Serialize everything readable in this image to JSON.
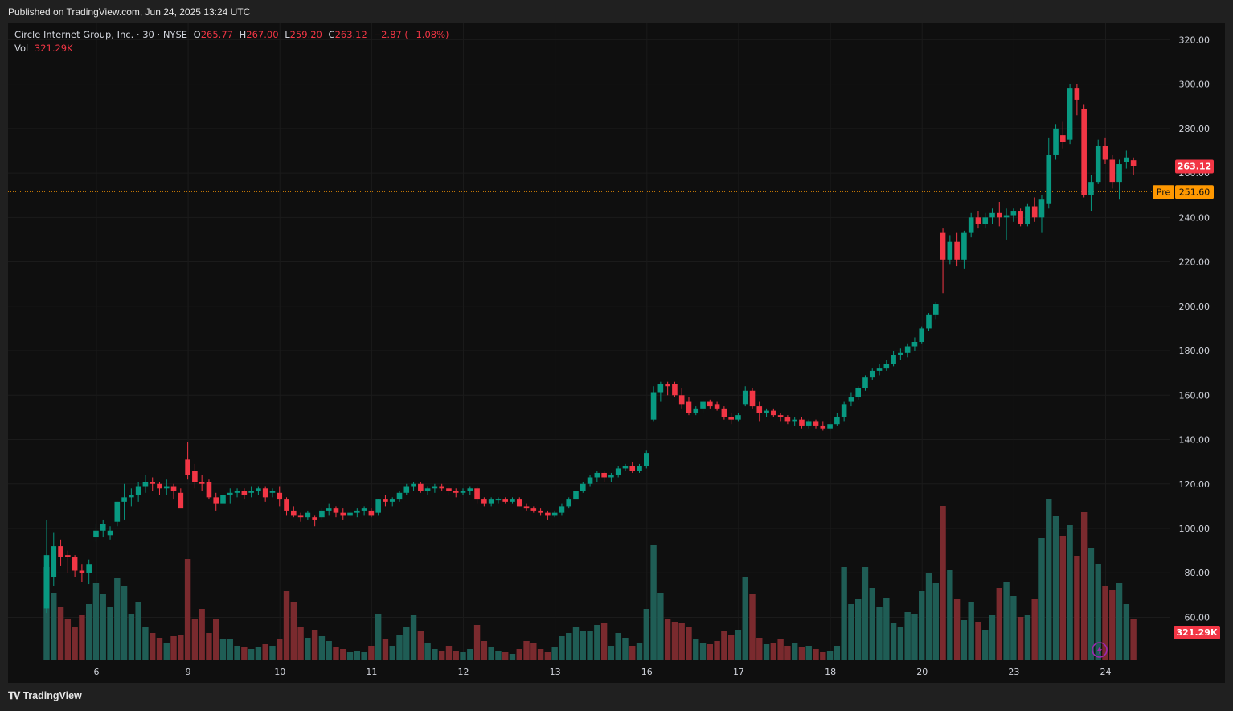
{
  "header": {
    "published": "Published on TradingView.com, Jun 24, 2025 13:24 UTC"
  },
  "footer": {
    "brand": "TradingView"
  },
  "legend": {
    "symbol": "Circle Internet Group, Inc. · 30 · NYSE",
    "o_label": "O",
    "o_value": "265.77",
    "h_label": "H",
    "h_value": "267.00",
    "l_label": "L",
    "l_value": "259.20",
    "c_label": "C",
    "c_value": "263.12",
    "change": "−2.87 (−1.08%)",
    "vol_label": "Vol",
    "vol_value": "321.29K"
  },
  "colors": {
    "up": "#089981",
    "down": "#f23645",
    "vol_up": "#1f5d55",
    "vol_down": "#7a2a2e",
    "last_price": "#f23645",
    "premarket": "#ff9800",
    "background": "#0f0f0f",
    "grid": "#1b1b1b",
    "axis_text": "#d1d4dc"
  },
  "chart_data": {
    "type": "candlestick",
    "title": "Circle Internet Group, Inc. · 30 · NYSE",
    "y_axis": {
      "min": 45,
      "max": 325,
      "ticks": [
        "60.00",
        "80.00",
        "100.00",
        "120.00",
        "140.00",
        "160.00",
        "180.00",
        "200.00",
        "220.00",
        "240.00",
        "260.00",
        "280.00",
        "300.00",
        "320.00"
      ]
    },
    "x_axis": {
      "day_labels": [
        {
          "label": "6",
          "index": 7
        },
        {
          "label": "9",
          "index": 20
        },
        {
          "label": "10",
          "index": 33
        },
        {
          "label": "11",
          "index": 46
        },
        {
          "label": "12",
          "index": 59
        },
        {
          "label": "13",
          "index": 72
        },
        {
          "label": "16",
          "index": 85
        },
        {
          "label": "17",
          "index": 98
        },
        {
          "label": "18",
          "index": 111
        },
        {
          "label": "20",
          "index": 124
        },
        {
          "label": "23",
          "index": 137
        },
        {
          "label": "24",
          "index": 150
        }
      ]
    },
    "last_price": {
      "value": 263.12,
      "label": "263.12"
    },
    "premarket": {
      "value": 251.6,
      "label": "251.60",
      "tag": "Pre"
    },
    "volume_label": "321.29K",
    "volume_scale_max": 1.0,
    "candles": [
      {
        "o": 64,
        "h": 104,
        "l": 62,
        "c": 88,
        "v": 0.58
      },
      {
        "o": 78,
        "h": 98,
        "l": 74,
        "c": 92,
        "v": 0.42
      },
      {
        "o": 92,
        "h": 95,
        "l": 83,
        "c": 87,
        "v": 0.33
      },
      {
        "o": 88,
        "h": 90,
        "l": 80,
        "c": 87,
        "v": 0.26
      },
      {
        "o": 87,
        "h": 88,
        "l": 78,
        "c": 81,
        "v": 0.21
      },
      {
        "o": 81,
        "h": 84,
        "l": 76,
        "c": 80,
        "v": 0.28
      },
      {
        "o": 80,
        "h": 86,
        "l": 75,
        "c": 84,
        "v": 0.35
      },
      {
        "o": 96,
        "h": 102,
        "l": 94,
        "c": 99,
        "v": 0.48
      },
      {
        "o": 99,
        "h": 104,
        "l": 96,
        "c": 102,
        "v": 0.41
      },
      {
        "o": 97,
        "h": 101,
        "l": 95,
        "c": 99,
        "v": 0.33
      },
      {
        "o": 103,
        "h": 112,
        "l": 101,
        "c": 112,
        "v": 0.51
      },
      {
        "o": 112,
        "h": 120,
        "l": 104,
        "c": 114,
        "v": 0.46
      },
      {
        "o": 114,
        "h": 118,
        "l": 110,
        "c": 115,
        "v": 0.29
      },
      {
        "o": 115,
        "h": 121,
        "l": 112,
        "c": 119,
        "v": 0.36
      },
      {
        "o": 119,
        "h": 124,
        "l": 116,
        "c": 121,
        "v": 0.21
      },
      {
        "o": 121,
        "h": 123,
        "l": 117,
        "c": 120,
        "v": 0.17
      },
      {
        "o": 120,
        "h": 121,
        "l": 115,
        "c": 118,
        "v": 0.14
      },
      {
        "o": 118,
        "h": 122,
        "l": 115,
        "c": 119,
        "v": 0.11
      },
      {
        "o": 119,
        "h": 120,
        "l": 113,
        "c": 117,
        "v": 0.15
      },
      {
        "o": 116,
        "h": 118,
        "l": 110,
        "c": 109,
        "v": 0.16
      },
      {
        "o": 131,
        "h": 139,
        "l": 122,
        "c": 124,
        "v": 0.63
      },
      {
        "o": 126,
        "h": 129,
        "l": 118,
        "c": 121,
        "v": 0.26
      },
      {
        "o": 121,
        "h": 124,
        "l": 117,
        "c": 120,
        "v": 0.32
      },
      {
        "o": 121,
        "h": 122,
        "l": 113,
        "c": 114,
        "v": 0.17
      },
      {
        "o": 114,
        "h": 116,
        "l": 108,
        "c": 111,
        "v": 0.26
      },
      {
        "o": 111,
        "h": 116,
        "l": 110,
        "c": 115,
        "v": 0.13
      },
      {
        "o": 115,
        "h": 118,
        "l": 111,
        "c": 116,
        "v": 0.13
      },
      {
        "o": 116,
        "h": 118,
        "l": 114,
        "c": 117,
        "v": 0.09
      },
      {
        "o": 117,
        "h": 118,
        "l": 113,
        "c": 115,
        "v": 0.08
      },
      {
        "o": 116,
        "h": 119,
        "l": 114,
        "c": 117,
        "v": 0.07
      },
      {
        "o": 117,
        "h": 119,
        "l": 115,
        "c": 118,
        "v": 0.08
      },
      {
        "o": 118,
        "h": 119,
        "l": 112,
        "c": 114,
        "v": 0.1
      },
      {
        "o": 116,
        "h": 118,
        "l": 114,
        "c": 117,
        "v": 0.09
      },
      {
        "o": 116,
        "h": 119,
        "l": 110,
        "c": 113,
        "v": 0.13
      },
      {
        "o": 113,
        "h": 114,
        "l": 106,
        "c": 108,
        "v": 0.43
      },
      {
        "o": 108,
        "h": 110,
        "l": 105,
        "c": 106,
        "v": 0.36
      },
      {
        "o": 106,
        "h": 107,
        "l": 103,
        "c": 105,
        "v": 0.21
      },
      {
        "o": 105,
        "h": 108,
        "l": 104,
        "c": 107,
        "v": 0.14
      },
      {
        "o": 105,
        "h": 106,
        "l": 101,
        "c": 104,
        "v": 0.19
      },
      {
        "o": 105,
        "h": 109,
        "l": 104,
        "c": 108,
        "v": 0.15
      },
      {
        "o": 108,
        "h": 111,
        "l": 106,
        "c": 109,
        "v": 0.12
      },
      {
        "o": 109,
        "h": 110,
        "l": 105,
        "c": 107,
        "v": 0.08
      },
      {
        "o": 107,
        "h": 109,
        "l": 104,
        "c": 106,
        "v": 0.07
      },
      {
        "o": 106,
        "h": 108,
        "l": 105,
        "c": 107,
        "v": 0.05
      },
      {
        "o": 107,
        "h": 109,
        "l": 105,
        "c": 108,
        "v": 0.06
      },
      {
        "o": 108,
        "h": 110,
        "l": 106,
        "c": 109,
        "v": 0.05
      },
      {
        "o": 108,
        "h": 109,
        "l": 105,
        "c": 106,
        "v": 0.09
      },
      {
        "o": 107,
        "h": 113,
        "l": 106,
        "c": 113,
        "v": 0.29
      },
      {
        "o": 113,
        "h": 115,
        "l": 110,
        "c": 112,
        "v": 0.13
      },
      {
        "o": 112,
        "h": 114,
        "l": 110,
        "c": 113,
        "v": 0.09
      },
      {
        "o": 113,
        "h": 117,
        "l": 112,
        "c": 116,
        "v": 0.16
      },
      {
        "o": 116,
        "h": 120,
        "l": 115,
        "c": 119,
        "v": 0.21
      },
      {
        "o": 119,
        "h": 121,
        "l": 117,
        "c": 120,
        "v": 0.28
      },
      {
        "o": 120,
        "h": 121,
        "l": 116,
        "c": 117,
        "v": 0.18
      },
      {
        "o": 117,
        "h": 119,
        "l": 115,
        "c": 118,
        "v": 0.11
      },
      {
        "o": 118,
        "h": 120,
        "l": 116,
        "c": 119,
        "v": 0.07
      },
      {
        "o": 119,
        "h": 120,
        "l": 117,
        "c": 118,
        "v": 0.06
      },
      {
        "o": 118,
        "h": 119,
        "l": 115,
        "c": 117,
        "v": 0.09
      },
      {
        "o": 117,
        "h": 118,
        "l": 114,
        "c": 116,
        "v": 0.06
      },
      {
        "o": 116,
        "h": 118,
        "l": 115,
        "c": 117,
        "v": 0.05
      },
      {
        "o": 117,
        "h": 119,
        "l": 115,
        "c": 118,
        "v": 0.07
      },
      {
        "o": 118,
        "h": 119,
        "l": 111,
        "c": 113,
        "v": 0.22
      },
      {
        "o": 113,
        "h": 114,
        "l": 110,
        "c": 111,
        "v": 0.12
      },
      {
        "o": 111,
        "h": 114,
        "l": 110,
        "c": 113,
        "v": 0.08
      },
      {
        "o": 113,
        "h": 114,
        "l": 111,
        "c": 113,
        "v": 0.06
      },
      {
        "o": 113,
        "h": 114,
        "l": 111,
        "c": 112,
        "v": 0.05
      },
      {
        "o": 112,
        "h": 114,
        "l": 111,
        "c": 113,
        "v": 0.04
      },
      {
        "o": 113,
        "h": 114,
        "l": 110,
        "c": 110,
        "v": 0.07
      },
      {
        "o": 110,
        "h": 111,
        "l": 108,
        "c": 109,
        "v": 0.12
      },
      {
        "o": 109,
        "h": 110,
        "l": 107,
        "c": 108,
        "v": 0.11
      },
      {
        "o": 108,
        "h": 109,
        "l": 106,
        "c": 107,
        "v": 0.07
      },
      {
        "o": 107,
        "h": 108,
        "l": 104,
        "c": 106,
        "v": 0.05
      },
      {
        "o": 106,
        "h": 108,
        "l": 105,
        "c": 107,
        "v": 0.08
      },
      {
        "o": 107,
        "h": 111,
        "l": 106,
        "c": 110,
        "v": 0.15
      },
      {
        "o": 110,
        "h": 114,
        "l": 109,
        "c": 113,
        "v": 0.17
      },
      {
        "o": 113,
        "h": 118,
        "l": 112,
        "c": 117,
        "v": 0.21
      },
      {
        "o": 117,
        "h": 121,
        "l": 116,
        "c": 120,
        "v": 0.18
      },
      {
        "o": 120,
        "h": 124,
        "l": 119,
        "c": 123,
        "v": 0.18
      },
      {
        "o": 123,
        "h": 126,
        "l": 121,
        "c": 125,
        "v": 0.22
      },
      {
        "o": 125,
        "h": 126,
        "l": 121,
        "c": 123,
        "v": 0.23
      },
      {
        "o": 123,
        "h": 125,
        "l": 121,
        "c": 124,
        "v": 0.09
      },
      {
        "o": 124,
        "h": 128,
        "l": 123,
        "c": 127,
        "v": 0.17
      },
      {
        "o": 127,
        "h": 129,
        "l": 126,
        "c": 128,
        "v": 0.14
      },
      {
        "o": 128,
        "h": 130,
        "l": 125,
        "c": 126,
        "v": 0.09
      },
      {
        "o": 126,
        "h": 129,
        "l": 125,
        "c": 128,
        "v": 0.11
      },
      {
        "o": 128,
        "h": 135,
        "l": 127,
        "c": 134,
        "v": 0.32
      },
      {
        "o": 149,
        "h": 164,
        "l": 148,
        "c": 161,
        "v": 0.72
      },
      {
        "o": 161,
        "h": 166,
        "l": 157,
        "c": 165,
        "v": 0.42
      },
      {
        "o": 165,
        "h": 166,
        "l": 160,
        "c": 164,
        "v": 0.26
      },
      {
        "o": 165,
        "h": 166,
        "l": 159,
        "c": 160,
        "v": 0.24
      },
      {
        "o": 160,
        "h": 163,
        "l": 154,
        "c": 156,
        "v": 0.23
      },
      {
        "o": 157,
        "h": 159,
        "l": 151,
        "c": 152,
        "v": 0.21
      },
      {
        "o": 152,
        "h": 155,
        "l": 151,
        "c": 154,
        "v": 0.13
      },
      {
        "o": 154,
        "h": 158,
        "l": 152,
        "c": 157,
        "v": 0.11
      },
      {
        "o": 157,
        "h": 158,
        "l": 154,
        "c": 155,
        "v": 0.1
      },
      {
        "o": 156,
        "h": 157,
        "l": 153,
        "c": 154,
        "v": 0.12
      },
      {
        "o": 154,
        "h": 155,
        "l": 149,
        "c": 150,
        "v": 0.18
      },
      {
        "o": 150,
        "h": 152,
        "l": 147,
        "c": 149,
        "v": 0.16
      },
      {
        "o": 149,
        "h": 152,
        "l": 148,
        "c": 151,
        "v": 0.19
      },
      {
        "o": 156,
        "h": 164,
        "l": 155,
        "c": 162,
        "v": 0.52
      },
      {
        "o": 162,
        "h": 163,
        "l": 154,
        "c": 155,
        "v": 0.41
      },
      {
        "o": 155,
        "h": 157,
        "l": 148,
        "c": 152,
        "v": 0.14
      },
      {
        "o": 152,
        "h": 154,
        "l": 150,
        "c": 153,
        "v": 0.1
      },
      {
        "o": 153,
        "h": 154,
        "l": 150,
        "c": 151,
        "v": 0.11
      },
      {
        "o": 151,
        "h": 152,
        "l": 148,
        "c": 150,
        "v": 0.13
      },
      {
        "o": 150,
        "h": 151,
        "l": 147,
        "c": 148,
        "v": 0.09
      },
      {
        "o": 148,
        "h": 150,
        "l": 146,
        "c": 149,
        "v": 0.11
      },
      {
        "o": 149,
        "h": 150,
        "l": 145,
        "c": 146,
        "v": 0.08
      },
      {
        "o": 146,
        "h": 149,
        "l": 145,
        "c": 148,
        "v": 0.09
      },
      {
        "o": 148,
        "h": 149,
        "l": 145,
        "c": 146,
        "v": 0.07
      },
      {
        "o": 146,
        "h": 148,
        "l": 144,
        "c": 145,
        "v": 0.05
      },
      {
        "o": 145,
        "h": 148,
        "l": 144,
        "c": 147,
        "v": 0.06
      },
      {
        "o": 147,
        "h": 152,
        "l": 146,
        "c": 150,
        "v": 0.09
      },
      {
        "o": 150,
        "h": 157,
        "l": 148,
        "c": 156,
        "v": 0.58
      },
      {
        "o": 157,
        "h": 161,
        "l": 155,
        "c": 159,
        "v": 0.35
      },
      {
        "o": 159,
        "h": 164,
        "l": 158,
        "c": 163,
        "v": 0.38
      },
      {
        "o": 163,
        "h": 169,
        "l": 162,
        "c": 168,
        "v": 0.58
      },
      {
        "o": 168,
        "h": 172,
        "l": 167,
        "c": 171,
        "v": 0.45
      },
      {
        "o": 171,
        "h": 174,
        "l": 169,
        "c": 172,
        "v": 0.33
      },
      {
        "o": 172,
        "h": 176,
        "l": 171,
        "c": 174,
        "v": 0.39
      },
      {
        "o": 174,
        "h": 180,
        "l": 173,
        "c": 178,
        "v": 0.23
      },
      {
        "o": 178,
        "h": 181,
        "l": 176,
        "c": 179,
        "v": 0.21
      },
      {
        "o": 179,
        "h": 183,
        "l": 177,
        "c": 182,
        "v": 0.3
      },
      {
        "o": 182,
        "h": 186,
        "l": 180,
        "c": 184,
        "v": 0.29
      },
      {
        "o": 184,
        "h": 191,
        "l": 183,
        "c": 190,
        "v": 0.43
      },
      {
        "o": 190,
        "h": 197,
        "l": 189,
        "c": 196,
        "v": 0.54
      },
      {
        "o": 196,
        "h": 202,
        "l": 194,
        "c": 201,
        "v": 0.48
      },
      {
        "o": 233,
        "h": 235,
        "l": 206,
        "c": 221,
        "v": 0.96
      },
      {
        "o": 221,
        "h": 232,
        "l": 219,
        "c": 229,
        "v": 0.56
      },
      {
        "o": 229,
        "h": 233,
        "l": 218,
        "c": 221,
        "v": 0.38
      },
      {
        "o": 221,
        "h": 234,
        "l": 217,
        "c": 233,
        "v": 0.25
      },
      {
        "o": 233,
        "h": 242,
        "l": 231,
        "c": 240,
        "v": 0.36
      },
      {
        "o": 240,
        "h": 243,
        "l": 235,
        "c": 237,
        "v": 0.24
      },
      {
        "o": 237,
        "h": 242,
        "l": 235,
        "c": 240,
        "v": 0.19
      },
      {
        "o": 240,
        "h": 244,
        "l": 237,
        "c": 242,
        "v": 0.28
      },
      {
        "o": 242,
        "h": 247,
        "l": 236,
        "c": 240,
        "v": 0.45
      },
      {
        "o": 240,
        "h": 244,
        "l": 230,
        "c": 241,
        "v": 0.49
      },
      {
        "o": 241,
        "h": 244,
        "l": 238,
        "c": 243,
        "v": 0.4
      },
      {
        "o": 243,
        "h": 244,
        "l": 236,
        "c": 237,
        "v": 0.27
      },
      {
        "o": 237,
        "h": 246,
        "l": 236,
        "c": 245,
        "v": 0.28
      },
      {
        "o": 245,
        "h": 249,
        "l": 238,
        "c": 240,
        "v": 0.38
      },
      {
        "o": 240,
        "h": 250,
        "l": 233,
        "c": 248,
        "v": 0.76
      },
      {
        "o": 246,
        "h": 276,
        "l": 244,
        "c": 268,
        "v": 1.0
      },
      {
        "o": 268,
        "h": 282,
        "l": 266,
        "c": 280,
        "v": 0.9
      },
      {
        "o": 277,
        "h": 283,
        "l": 271,
        "c": 274,
        "v": 0.77
      },
      {
        "o": 275,
        "h": 300,
        "l": 273,
        "c": 298,
        "v": 0.84
      },
      {
        "o": 298,
        "h": 300,
        "l": 286,
        "c": 293,
        "v": 0.65
      },
      {
        "o": 289,
        "h": 291,
        "l": 249,
        "c": 250,
        "v": 0.92
      },
      {
        "o": 250,
        "h": 259,
        "l": 243,
        "c": 256,
        "v": 0.7
      },
      {
        "o": 256,
        "h": 275,
        "l": 255,
        "c": 272,
        "v": 0.6
      },
      {
        "o": 272,
        "h": 276,
        "l": 264,
        "c": 266,
        "v": 0.46
      },
      {
        "o": 266,
        "h": 268,
        "l": 253,
        "c": 256,
        "v": 0.44
      },
      {
        "o": 256,
        "h": 266,
        "l": 248,
        "c": 264,
        "v": 0.48
      },
      {
        "o": 265,
        "h": 270,
        "l": 262,
        "c": 267,
        "v": 0.35
      },
      {
        "o": 265.77,
        "h": 267,
        "l": 259.2,
        "c": 263.12,
        "v": 0.26
      }
    ]
  }
}
